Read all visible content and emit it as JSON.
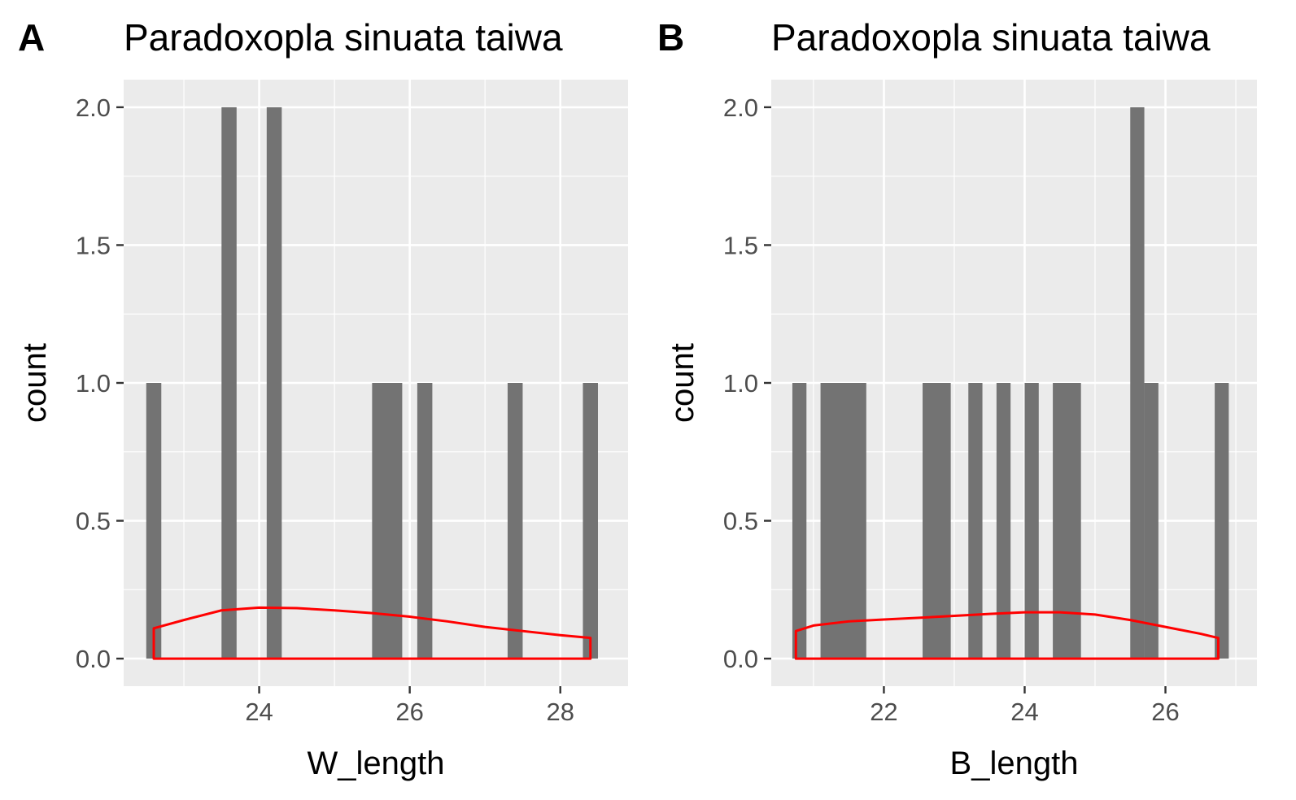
{
  "chart_data": [
    {
      "type": "bar",
      "panel_label": "A",
      "title": "Paradoxopla sinuata taiwa",
      "xlabel": "W_length",
      "ylabel": "count",
      "xlim": [
        22.2,
        28.9
      ],
      "ylim": [
        -0.1,
        2.1
      ],
      "x_ticks": [
        24,
        26,
        28
      ],
      "y_ticks": [
        0.0,
        0.5,
        1.0,
        1.5,
        2.0
      ],
      "x_tick_labels": [
        "24",
        "26",
        "28"
      ],
      "y_tick_labels": [
        "0.0",
        "0.5",
        "1.0",
        "1.5",
        "2.0"
      ],
      "grid": true,
      "bar_color": "#737373",
      "density_color": "#ff0000",
      "background": "#ebebeb",
      "bins": [
        {
          "x0": 22.5,
          "x1": 22.7,
          "count": 1
        },
        {
          "x0": 23.5,
          "x1": 23.7,
          "count": 2
        },
        {
          "x0": 24.1,
          "x1": 24.3,
          "count": 2
        },
        {
          "x0": 25.5,
          "x1": 25.9,
          "count": 1
        },
        {
          "x0": 26.1,
          "x1": 26.3,
          "count": 1
        },
        {
          "x0": 27.3,
          "x1": 27.5,
          "count": 1
        },
        {
          "x0": 28.3,
          "x1": 28.5,
          "count": 1
        }
      ],
      "density": {
        "x": [
          22.6,
          23.0,
          23.5,
          24.0,
          24.5,
          25.0,
          25.5,
          26.0,
          26.5,
          27.0,
          27.5,
          28.0,
          28.4
        ],
        "y": [
          0.11,
          0.14,
          0.175,
          0.185,
          0.183,
          0.175,
          0.165,
          0.152,
          0.135,
          0.115,
          0.1,
          0.085,
          0.075
        ]
      }
    },
    {
      "type": "bar",
      "panel_label": "B",
      "title": "Paradoxopla sinuata taiwa",
      "xlabel": "B_length",
      "ylabel": "count",
      "xlim": [
        20.4,
        27.3
      ],
      "ylim": [
        -0.1,
        2.1
      ],
      "x_ticks": [
        22,
        24,
        26
      ],
      "y_ticks": [
        0.0,
        0.5,
        1.0,
        1.5,
        2.0
      ],
      "x_tick_labels": [
        "22",
        "24",
        "26"
      ],
      "y_tick_labels": [
        "0.0",
        "0.5",
        "1.0",
        "1.5",
        "2.0"
      ],
      "grid": true,
      "bar_color": "#737373",
      "density_color": "#ff0000",
      "background": "#ebebeb",
      "bins": [
        {
          "x0": 20.7,
          "x1": 20.9,
          "count": 1
        },
        {
          "x0": 21.1,
          "x1": 21.75,
          "count": 1
        },
        {
          "x0": 22.55,
          "x1": 22.95,
          "count": 1
        },
        {
          "x0": 23.2,
          "x1": 23.4,
          "count": 1
        },
        {
          "x0": 23.6,
          "x1": 23.8,
          "count": 1
        },
        {
          "x0": 24.0,
          "x1": 24.2,
          "count": 1
        },
        {
          "x0": 24.4,
          "x1": 24.8,
          "count": 1
        },
        {
          "x0": 25.5,
          "x1": 25.7,
          "count": 2
        },
        {
          "x0": 25.7,
          "x1": 25.9,
          "count": 1
        },
        {
          "x0": 26.7,
          "x1": 26.9,
          "count": 1
        }
      ],
      "density": {
        "x": [
          20.75,
          21.0,
          21.5,
          22.0,
          22.5,
          23.0,
          23.5,
          24.0,
          24.5,
          25.0,
          25.5,
          26.0,
          26.5,
          26.75
        ],
        "y": [
          0.1,
          0.12,
          0.135,
          0.142,
          0.148,
          0.155,
          0.162,
          0.168,
          0.168,
          0.16,
          0.14,
          0.115,
          0.09,
          0.075
        ]
      }
    }
  ]
}
